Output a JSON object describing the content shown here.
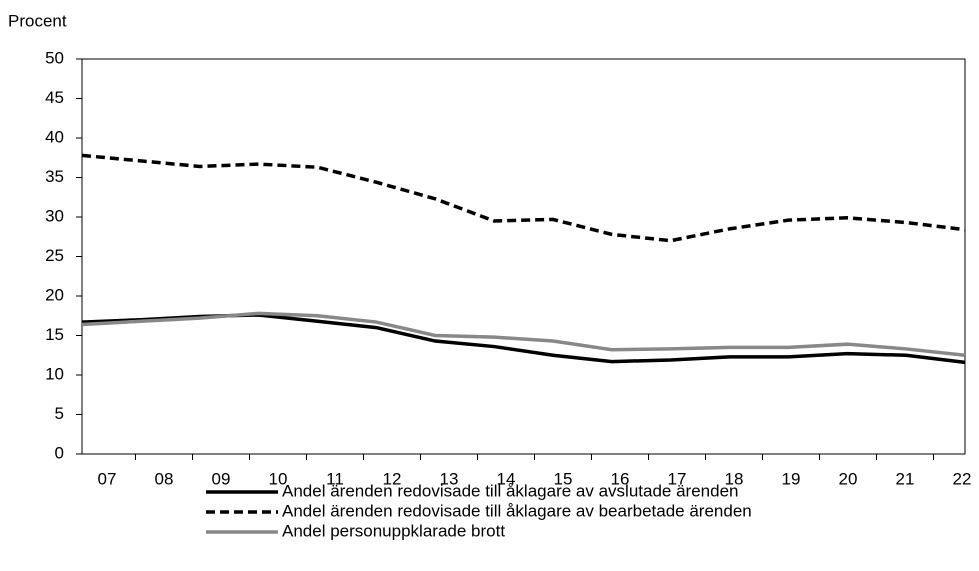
{
  "chart_data": {
    "type": "line",
    "y_label": "Procent",
    "categories": [
      "07",
      "08",
      "09",
      "10",
      "11",
      "12",
      "13",
      "14",
      "15",
      "16",
      "17",
      "18",
      "19",
      "20",
      "21",
      "22"
    ],
    "series": [
      {
        "name": "Andel ärenden redovisade till åklagare av avslutade ärenden",
        "color": "#000000",
        "dash": "solid",
        "values": [
          16.7,
          17.0,
          17.4,
          17.6,
          16.8,
          16.0,
          14.3,
          13.6,
          12.5,
          11.7,
          11.9,
          12.3,
          12.3,
          12.7,
          12.5,
          11.6
        ]
      },
      {
        "name": "Andel ärenden redovisade till åklagare av bearbetade ärenden",
        "color": "#000000",
        "dash": "dashed",
        "values": [
          37.8,
          37.1,
          36.4,
          36.7,
          36.3,
          34.4,
          32.3,
          29.5,
          29.7,
          27.8,
          27.0,
          28.5,
          29.6,
          29.9,
          29.3,
          28.4
        ]
      },
      {
        "name": "Andel personuppklarade brott",
        "color": "#888888",
        "dash": "solid",
        "values": [
          16.4,
          16.8,
          17.2,
          17.8,
          17.5,
          16.7,
          15.0,
          14.8,
          14.3,
          13.2,
          13.3,
          13.5,
          13.5,
          13.9,
          13.3,
          12.5
        ]
      }
    ],
    "ylim": [
      0,
      50
    ],
    "yticks": [
      0,
      5,
      10,
      15,
      20,
      25,
      30,
      35,
      40,
      45,
      50
    ],
    "grid": false
  }
}
